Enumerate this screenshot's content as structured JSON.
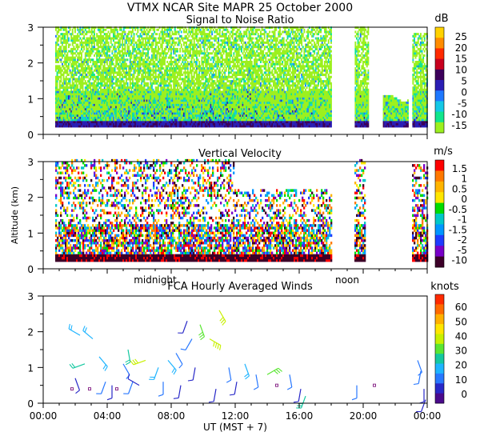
{
  "header": {
    "title": "VTMX   NCAR Site   MAPR 25 October 2000"
  },
  "chart_data": [
    {
      "type": "heatmap",
      "title": "Signal to Noise Ratio",
      "ylabel": "",
      "ylim": [
        0,
        3
      ],
      "yticks": [
        "0",
        "1",
        "2",
        "3"
      ],
      "xlim": [
        0,
        24
      ],
      "colorbar": {
        "unit": "dB",
        "labels": [
          "25",
          "20",
          "15",
          "10",
          "5",
          "0",
          "-5",
          "-10",
          "-15"
        ],
        "colors": [
          "#ffd200",
          "#ff8c00",
          "#ff2a00",
          "#c8001e",
          "#3c005a",
          "#2a1eb4",
          "#1e78ff",
          "#14c8e6",
          "#10e68c",
          "#9cf01e"
        ]
      }
    },
    {
      "type": "heatmap",
      "title": "Vertical Velocity",
      "ylabel": "Altitude (km)",
      "ylim": [
        0,
        3
      ],
      "yticks": [
        "0",
        "1",
        "2",
        "3"
      ],
      "xlim": [
        0,
        24
      ],
      "annotations": [
        "midnight",
        "noon"
      ],
      "colorbar": {
        "unit": "m/s",
        "labels": [
          "1.5",
          "1",
          "0.5",
          "0",
          "-0.5",
          "-1",
          "-1.5",
          "-2",
          "-5",
          "-10"
        ],
        "colors": [
          "#ff0000",
          "#ff7800",
          "#ffb400",
          "#ffe600",
          "#00dc00",
          "#00c8c8",
          "#0096ff",
          "#1e3cff",
          "#7800c8",
          "#3c0028"
        ]
      }
    },
    {
      "type": "scatter",
      "title": "FCA Hourly Averaged Winds",
      "xlabel": "UT   (MST + 7)",
      "ylabel": "",
      "ylim": [
        0,
        3
      ],
      "yticks": [
        "0",
        "1",
        "2",
        "3"
      ],
      "xlim": [
        0,
        24
      ],
      "xticks": [
        "00:00",
        "04:00",
        "08:00",
        "12:00",
        "16:00",
        "20:00",
        "00:00"
      ],
      "colorbar": {
        "unit": "knots",
        "labels": [
          "60",
          "50",
          "40",
          "30",
          "20",
          "10",
          "0"
        ],
        "colors": [
          "#ff2a00",
          "#ff6a00",
          "#ffb000",
          "#ffe600",
          "#c8f000",
          "#5ae632",
          "#14c8a0",
          "#1eb4ff",
          "#2878ff",
          "#2828c8",
          "#4a0a8c"
        ]
      },
      "wind_barbs": [
        {
          "t": 1.8,
          "alt": 0.4,
          "dir": 200,
          "speed": 0
        },
        {
          "t": 2.0,
          "alt": 0.7,
          "dir": 160,
          "speed": 8
        },
        {
          "t": 2.3,
          "alt": 1.9,
          "dir": 300,
          "speed": 18
        },
        {
          "t": 2.6,
          "alt": 1.1,
          "dir": 250,
          "speed": 22
        },
        {
          "t": 2.9,
          "alt": 0.4,
          "dir": 200,
          "speed": 0
        },
        {
          "t": 3.1,
          "alt": 1.8,
          "dir": 310,
          "speed": 15
        },
        {
          "t": 3.5,
          "alt": 1.3,
          "dir": 140,
          "speed": 16
        },
        {
          "t": 3.9,
          "alt": 0.6,
          "dir": 200,
          "speed": 10
        },
        {
          "t": 4.3,
          "alt": 0.5,
          "dir": 180,
          "speed": 6
        },
        {
          "t": 4.6,
          "alt": 0.4,
          "dir": 200,
          "speed": 0
        },
        {
          "t": 5.0,
          "alt": 1.1,
          "dir": 150,
          "speed": 12
        },
        {
          "t": 5.3,
          "alt": 1.5,
          "dir": 170,
          "speed": 22
        },
        {
          "t": 5.6,
          "alt": 0.6,
          "dir": 200,
          "speed": 9
        },
        {
          "t": 6.0,
          "alt": 0.5,
          "dir": 300,
          "speed": 8
        },
        {
          "t": 6.4,
          "alt": 1.2,
          "dir": 250,
          "speed": 34
        },
        {
          "t": 7.2,
          "alt": 1.0,
          "dir": 200,
          "speed": 20
        },
        {
          "t": 7.5,
          "alt": 0.6,
          "dir": 180,
          "speed": 9
        },
        {
          "t": 7.8,
          "alt": 1.2,
          "dir": 140,
          "speed": 16
        },
        {
          "t": 8.3,
          "alt": 1.4,
          "dir": 150,
          "speed": 14
        },
        {
          "t": 8.6,
          "alt": 0.5,
          "dir": 190,
          "speed": 5
        },
        {
          "t": 9.0,
          "alt": 2.3,
          "dir": 200,
          "speed": 8
        },
        {
          "t": 9.3,
          "alt": 1.8,
          "dir": 210,
          "speed": 9
        },
        {
          "t": 9.5,
          "alt": 1.0,
          "dir": 190,
          "speed": 7
        },
        {
          "t": 9.8,
          "alt": 2.2,
          "dir": 160,
          "speed": 30
        },
        {
          "t": 10.4,
          "alt": 1.8,
          "dir": 120,
          "speed": 36
        },
        {
          "t": 11.0,
          "alt": 2.6,
          "dir": 150,
          "speed": 34
        },
        {
          "t": 10.8,
          "alt": 0.4,
          "dir": 190,
          "speed": 5
        },
        {
          "t": 11.6,
          "alt": 1.0,
          "dir": 170,
          "speed": 10
        },
        {
          "t": 12.1,
          "alt": 0.6,
          "dir": 190,
          "speed": 8
        },
        {
          "t": 12.6,
          "alt": 1.1,
          "dir": 160,
          "speed": 15
        },
        {
          "t": 13.3,
          "alt": 0.8,
          "dir": 170,
          "speed": 9
        },
        {
          "t": 14.0,
          "alt": 0.8,
          "dir": 60,
          "speed": 30
        },
        {
          "t": 14.6,
          "alt": 0.5,
          "dir": 180,
          "speed": 0
        },
        {
          "t": 15.4,
          "alt": 0.8,
          "dir": 170,
          "speed": 10
        },
        {
          "t": 16.1,
          "alt": 0.4,
          "dir": 190,
          "speed": 7
        },
        {
          "t": 16.4,
          "alt": 0.2,
          "dir": 200,
          "speed": 26
        },
        {
          "t": 19.6,
          "alt": 0.5,
          "dir": 180,
          "speed": 12
        },
        {
          "t": 20.7,
          "alt": 0.5,
          "dir": 190,
          "speed": 0
        },
        {
          "t": 23.4,
          "alt": 1.2,
          "dir": 160,
          "speed": 10
        },
        {
          "t": 23.6,
          "alt": 0.9,
          "dir": 190,
          "speed": 9
        },
        {
          "t": 23.8,
          "alt": 0.4,
          "dir": 180,
          "speed": 5
        },
        {
          "t": 23.9,
          "alt": 0.1,
          "dir": 200,
          "speed": 4
        }
      ]
    }
  ]
}
